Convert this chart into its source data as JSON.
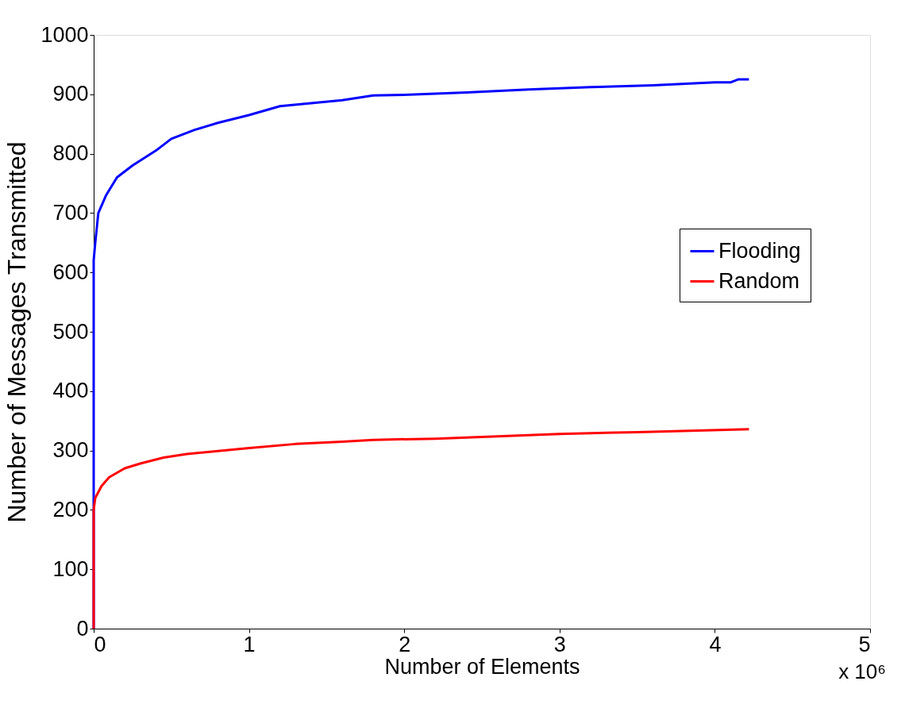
{
  "chart_data": {
    "type": "line",
    "xlabel": "Number of Elements",
    "ylabel": "Number of Messages Transmitted",
    "xlim": [
      0,
      5
    ],
    "xticks": [
      0,
      1,
      2,
      3,
      4,
      5
    ],
    "ylim": [
      0,
      1000
    ],
    "yticks": [
      0,
      100,
      200,
      300,
      400,
      500,
      600,
      700,
      800,
      900,
      1000
    ],
    "grid": false,
    "legend": "right",
    "marker": "none",
    "line_style": "solid",
    "annotations": [
      "x 10⁶"
    ],
    "series": [
      {
        "name": "Flooding",
        "color": "#0000ff",
        "x": [
          0,
          0,
          0.01,
          0.03,
          0.08,
          0.15,
          0.25,
          0.4,
          0.5,
          0.65,
          0.8,
          1.0,
          1.2,
          1.4,
          1.6,
          1.8,
          2.0,
          2.4,
          2.8,
          3.2,
          3.6,
          4.0,
          4.1,
          4.15,
          4.22
        ],
        "values": [
          0,
          620,
          650,
          700,
          730,
          760,
          780,
          805,
          825,
          840,
          852,
          865,
          880,
          885,
          890,
          898,
          899,
          903,
          908,
          912,
          915,
          920,
          920,
          925,
          925
        ]
      },
      {
        "name": "Random",
        "color": "#ff0000",
        "x": [
          0,
          0,
          0.01,
          0.05,
          0.1,
          0.2,
          0.3,
          0.45,
          0.6,
          0.8,
          1.0,
          1.3,
          1.6,
          1.8,
          2.2,
          2.6,
          3.0,
          3.5,
          4.22
        ],
        "values": [
          0,
          200,
          220,
          240,
          255,
          270,
          278,
          288,
          294,
          299,
          304,
          311,
          315,
          318,
          320,
          324,
          328,
          331,
          336
        ]
      }
    ]
  }
}
